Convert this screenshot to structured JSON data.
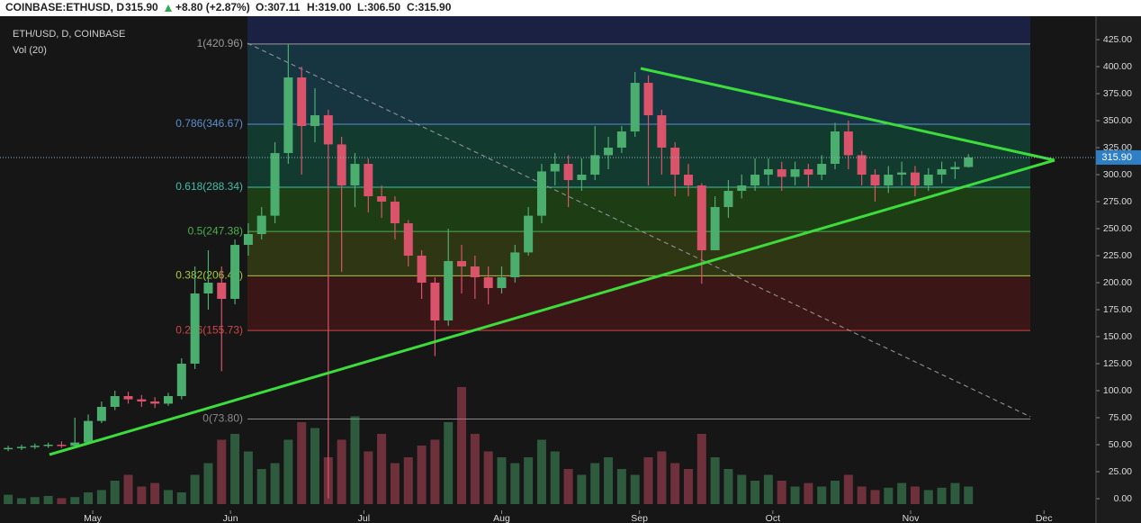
{
  "chart_data": {
    "type": "candlestick",
    "header": {
      "symbol": "COINBASE:ETHUSD, D",
      "price": "315.90",
      "change": "+8.80 (+2.87%)",
      "open": "O:307.11",
      "high": "H:319.00",
      "low": "L:306.50",
      "close": "C:315.90"
    },
    "title": "ETH/USD, D, COINBASE",
    "volume_label": "Vol (20)",
    "up_color": "#4bae6e",
    "down_color": "#d9536a",
    "x": [
      -19,
      -16,
      -13,
      -10,
      -7,
      -4,
      -1,
      2,
      5,
      8,
      11,
      14,
      17,
      20,
      23,
      26,
      29,
      32,
      35,
      38,
      41,
      44,
      47,
      50,
      53,
      56,
      59,
      62,
      65,
      68,
      71,
      74,
      77,
      80,
      83,
      86,
      89,
      92,
      95,
      98,
      101,
      104,
      107,
      110,
      113,
      116,
      119,
      122,
      125,
      128,
      131,
      134,
      137,
      140,
      143,
      146,
      149,
      152,
      155,
      158,
      161,
      164,
      167,
      170,
      173,
      176,
      179,
      182,
      185,
      188,
      191,
      194,
      197
    ],
    "open": [
      46,
      47,
      48,
      49,
      50,
      49,
      52,
      72,
      85,
      95,
      92,
      90,
      88,
      95,
      125,
      190,
      200,
      185,
      235,
      245,
      262,
      320,
      390,
      345,
      355,
      328,
      290,
      310,
      280,
      275,
      255,
      225,
      200,
      165,
      220,
      215,
      205,
      195,
      205,
      228,
      262,
      303,
      310,
      295,
      300,
      318,
      325,
      340,
      385,
      355,
      325,
      300,
      290,
      230,
      270,
      285,
      290,
      300,
      305,
      298,
      305,
      300,
      310,
      340,
      318,
      300,
      290,
      300,
      302,
      290,
      300,
      305,
      307.11
    ],
    "high": [
      49,
      50,
      51,
      52,
      53,
      75,
      78,
      90,
      100,
      99,
      96,
      94,
      98,
      130,
      215,
      230,
      215,
      240,
      255,
      270,
      330,
      421,
      400,
      380,
      360,
      335,
      320,
      315,
      290,
      280,
      258,
      230,
      205,
      250,
      235,
      225,
      215,
      215,
      235,
      270,
      310,
      320,
      318,
      315,
      345,
      335,
      345,
      395,
      392,
      360,
      330,
      310,
      292,
      280,
      295,
      300,
      315,
      315,
      312,
      312,
      310,
      318,
      348,
      350,
      322,
      305,
      308,
      312,
      308,
      306,
      312,
      312,
      319
    ],
    "low": [
      44,
      45,
      46,
      47,
      47,
      48,
      50,
      70,
      82,
      88,
      85,
      84,
      86,
      92,
      120,
      175,
      118,
      180,
      225,
      240,
      255,
      310,
      300,
      330,
      0.1,
      210,
      270,
      265,
      260,
      240,
      215,
      185,
      132,
      160,
      190,
      185,
      180,
      190,
      200,
      225,
      255,
      290,
      270,
      285,
      295,
      305,
      320,
      335,
      290,
      300,
      280,
      280,
      199,
      230,
      260,
      278,
      285,
      290,
      285,
      290,
      288,
      295,
      305,
      305,
      290,
      275,
      283,
      290,
      280,
      285,
      292,
      296,
      306.5
    ],
    "close": [
      47,
      48,
      49,
      50,
      49,
      52,
      72,
      85,
      95,
      92,
      90,
      88,
      95,
      125,
      190,
      200,
      185,
      235,
      245,
      262,
      320,
      390,
      345,
      355,
      328,
      290,
      310,
      280,
      275,
      255,
      225,
      200,
      165,
      220,
      215,
      205,
      195,
      205,
      228,
      262,
      303,
      310,
      295,
      300,
      318,
      325,
      340,
      385,
      355,
      325,
      300,
      290,
      230,
      270,
      285,
      290,
      300,
      305,
      298,
      305,
      300,
      310,
      340,
      318,
      300,
      290,
      300,
      302,
      290,
      300,
      305,
      307.11,
      315.9
    ],
    "volume": [
      8,
      5,
      6,
      7,
      5,
      6,
      10,
      12,
      20,
      25,
      15,
      18,
      12,
      10,
      25,
      35,
      55,
      60,
      45,
      30,
      35,
      55,
      70,
      65,
      40,
      55,
      75,
      45,
      60,
      35,
      40,
      50,
      55,
      70,
      100,
      60,
      45,
      40,
      35,
      40,
      55,
      45,
      30,
      25,
      35,
      40,
      30,
      25,
      40,
      45,
      35,
      30,
      60,
      40,
      30,
      25,
      20,
      25,
      20,
      15,
      18,
      15,
      20,
      25,
      15,
      12,
      14,
      18,
      15,
      12,
      14,
      18,
      15
    ],
    "xlim": [
      -20.85,
      225.7
    ],
    "xticks": [
      {
        "value": 0,
        "label": "May"
      },
      {
        "value": 31,
        "label": "Jun"
      },
      {
        "value": 61,
        "label": "Jul"
      },
      {
        "value": 92,
        "label": "Aug"
      },
      {
        "value": 123,
        "label": "Sep"
      },
      {
        "value": 153,
        "label": "Oct"
      },
      {
        "value": 184,
        "label": "Nov"
      },
      {
        "value": 214,
        "label": "Dec"
      }
    ],
    "ylim": [
      -22.5,
      446.7
    ],
    "yticks": [
      {
        "value": 0,
        "label": "0.00"
      },
      {
        "value": 25,
        "label": "25.00"
      },
      {
        "value": 50,
        "label": "50.00"
      },
      {
        "value": 75,
        "label": "75.00"
      },
      {
        "value": 100,
        "label": "100.00"
      },
      {
        "value": 125,
        "label": "125.00"
      },
      {
        "value": 150,
        "label": "150.00"
      },
      {
        "value": 175,
        "label": "175.00"
      },
      {
        "value": 200,
        "label": "200.00"
      },
      {
        "value": 225,
        "label": "225.00"
      },
      {
        "value": 250,
        "label": "250.00"
      },
      {
        "value": 275,
        "label": "275.00"
      },
      {
        "value": 300,
        "label": "300.00"
      },
      {
        "value": 325,
        "label": "325.00"
      },
      {
        "value": 350,
        "label": "350.00"
      },
      {
        "value": 375,
        "label": "375.00"
      },
      {
        "value": 400,
        "label": "400.00"
      },
      {
        "value": 425,
        "label": "425.00"
      }
    ],
    "last_price": {
      "value": 315.9,
      "label": "315.90"
    },
    "fib_levels": [
      {
        "value": 420.96,
        "label": "1(420.96)",
        "color": "#9a9a9a",
        "band_color": "#2b2b2b"
      },
      {
        "value": 346.67,
        "label": "0.786(346.67)",
        "color": "#5b8fd0",
        "band_color": "#173540"
      },
      {
        "value": 288.34,
        "label": "0.618(288.34)",
        "color": "#3fbfa8",
        "band_color": "#123a2e"
      },
      {
        "value": 247.38,
        "label": "0.5(247.38)",
        "color": "#4caf50",
        "band_color": "#1d3d15"
      },
      {
        "value": 206.41,
        "label": "0.382(206.41)",
        "color": "#a6c93a",
        "band_color": "#2f3614"
      },
      {
        "value": 155.73,
        "label": "0.236(155.73)",
        "color": "#d04545",
        "band_color": "#3a1616"
      },
      {
        "value": 73.8,
        "label": "0(73.80)",
        "color": "#8a8a8a",
        "band_color": "#161616"
      }
    ],
    "above_band_color": "#1b2142"
  }
}
